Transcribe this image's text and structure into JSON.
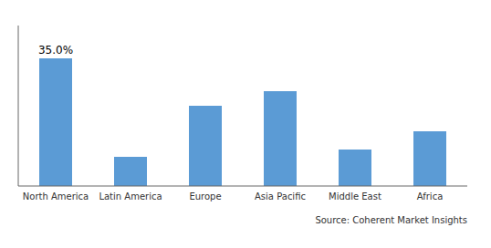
{
  "chart_data": {
    "type": "bar",
    "categories": [
      "North America",
      "Latin America",
      "Europe",
      "Asia Pacific",
      "Middle East",
      "Africa"
    ],
    "values": [
      35.0,
      8.0,
      22.0,
      26.0,
      10.0,
      15.0
    ],
    "color": "#5B9BD5",
    "ylim": [
      0,
      44
    ],
    "tick_labels": "x",
    "grid": false,
    "annotations": [
      {
        "text": "35.0%",
        "x": "North America",
        "y": 35.0
      },
      {
        "text": "Source: Coherent Market Insights"
      }
    ]
  }
}
